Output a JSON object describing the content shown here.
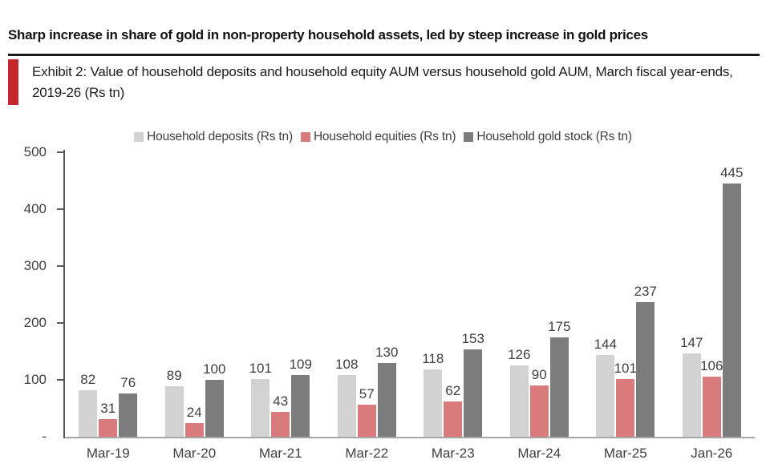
{
  "header": {
    "title": "Sharp increase in share of gold in non-property household assets, led by steep increase in gold prices",
    "exhibit_caption": "Exhibit 2: Value of household deposits and household equity AUM versus household gold AUM, March fiscal year-ends, 2019-26 (Rs tn)",
    "accent_color": "#c4262c"
  },
  "chart_data": {
    "type": "bar",
    "title": "",
    "xlabel": "",
    "ylabel": "",
    "categories": [
      "Mar-19",
      "Mar-20",
      "Mar-21",
      "Mar-22",
      "Mar-23",
      "Mar-24",
      "Mar-25",
      "Jan-26"
    ],
    "series": [
      {
        "name": "Household deposits (Rs tn)",
        "color": "#d2d2d2",
        "values": [
          82,
          89,
          101,
          108,
          118,
          126,
          144,
          147
        ]
      },
      {
        "name": "Household equities (Rs tn)",
        "color": "#d97b7c",
        "values": [
          31,
          24,
          43,
          57,
          62,
          90,
          101,
          106
        ]
      },
      {
        "name": "Household gold stock (Rs tn)",
        "color": "#7c7c7c",
        "values": [
          76,
          100,
          109,
          130,
          153,
          175,
          237,
          445
        ]
      }
    ],
    "ylim": [
      0,
      500
    ],
    "yticks": [
      {
        "label": "500",
        "value": 500
      },
      {
        "label": "400",
        "value": 400
      },
      {
        "label": "300",
        "value": 300
      },
      {
        "label": "200",
        "value": 200
      },
      {
        "label": "100",
        "value": 100
      },
      {
        "label": "-",
        "value": 0
      }
    ],
    "grid": false,
    "legend_position": "top",
    "data_labels": true
  }
}
